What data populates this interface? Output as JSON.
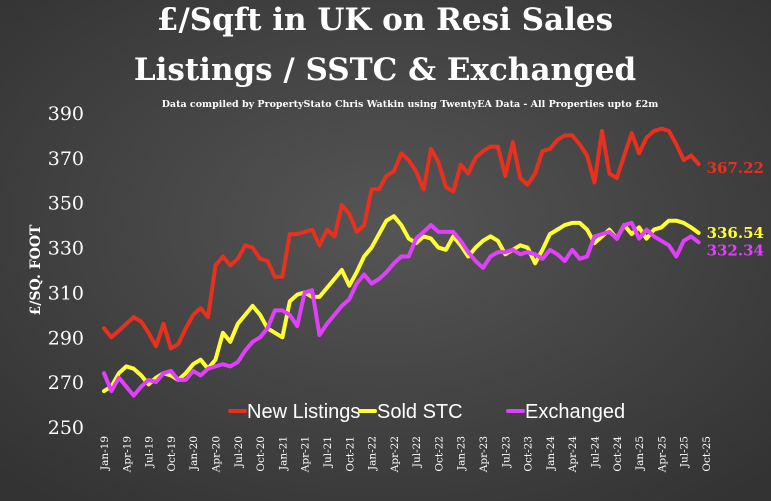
{
  "chart_data": {
    "type": "line",
    "title": [
      "£/Sqft in UK on Resi Sales",
      "Listings / SSTC & Exchanged"
    ],
    "subtitle": "Data compiled by PropertyStato Chris Watkin using TwentyEA Data - All Properties upto £2m",
    "y_label": "£/SQ. FOOT",
    "categories": [
      "Jan-19",
      null,
      null,
      "Apr-19",
      null,
      null,
      "Jul-19",
      null,
      null,
      "Oct-19",
      null,
      null,
      "Jan-20",
      null,
      null,
      "Apr-20",
      null,
      null,
      "Jul-20",
      null,
      null,
      "Oct-20",
      null,
      null,
      "Jan-21",
      null,
      null,
      "Apr-21",
      null,
      null,
      "Jul-21",
      null,
      null,
      "Oct-21",
      null,
      null,
      "Jan-22",
      null,
      null,
      "Apr-22",
      null,
      null,
      "Jul-22",
      null,
      null,
      "Oct-22",
      null,
      null,
      "Jan-23",
      null,
      null,
      "Apr-23",
      null,
      null,
      "Jul-23",
      null,
      null,
      "Oct-23",
      null,
      null,
      "Jan-24",
      null,
      null,
      "Apr-24",
      null,
      null,
      "Jul-24",
      null,
      null,
      "Oct-24",
      null,
      null,
      "Jan-25",
      null,
      null,
      "Apr-25",
      null,
      null,
      "Jul-25",
      null,
      null,
      "Oct-25"
    ],
    "series": [
      {
        "name": "New Listings",
        "color": "#e8301e",
        "values": [
          294,
          290,
          293,
          296,
          299,
          297,
          292,
          286,
          296,
          285,
          287,
          294,
          300,
          303,
          299,
          322,
          326,
          322,
          325,
          331,
          330,
          325,
          324,
          317,
          317,
          336,
          336,
          337,
          338,
          331,
          338,
          335,
          349,
          345,
          337,
          340,
          356,
          356,
          362,
          364,
          372,
          369,
          364,
          356,
          374,
          368,
          357,
          355,
          367,
          363,
          370,
          373,
          375,
          375,
          362,
          377,
          361,
          358,
          363,
          373,
          374,
          378,
          380,
          380,
          376,
          371,
          359,
          382,
          363,
          361,
          371,
          381,
          372,
          379,
          382,
          383,
          382,
          376,
          369,
          371,
          367.22,
          null
        ]
      },
      {
        "name": "Sold STC",
        "color": "#ffff33",
        "values": [
          266,
          268,
          274,
          277,
          276,
          273,
          269,
          272,
          274,
          273,
          271,
          274,
          278,
          280,
          276,
          280,
          292,
          288,
          296,
          300,
          304,
          300,
          294,
          292,
          290,
          306,
          309,
          310,
          308,
          308,
          312,
          316,
          320,
          313,
          319,
          326,
          330,
          336,
          342,
          344,
          340,
          334,
          332,
          335,
          334,
          330,
          329,
          335,
          331,
          326,
          330,
          333,
          335,
          333,
          327,
          329,
          331,
          330,
          323,
          329,
          336,
          338,
          340,
          341,
          341,
          338,
          332,
          335,
          338,
          334,
          340,
          336,
          339,
          334,
          338,
          339,
          342,
          342,
          341,
          339,
          336.54,
          null
        ]
      },
      {
        "name": "Exchanged",
        "color": "#e040fb",
        "values": [
          274,
          266,
          272,
          268,
          264,
          268,
          271,
          270,
          274,
          275,
          271,
          271,
          275,
          273,
          276,
          277,
          278,
          277,
          279,
          284,
          288,
          290,
          294,
          302,
          302,
          300,
          295,
          310,
          311,
          291,
          296,
          300,
          304,
          307,
          314,
          318,
          314,
          316,
          319,
          323,
          326,
          326,
          334,
          337,
          340,
          337,
          337,
          337,
          333,
          328,
          324,
          321,
          326,
          328,
          328,
          329,
          327,
          328,
          327,
          325,
          329,
          327,
          324,
          329,
          325,
          326,
          335,
          336,
          337,
          334,
          340,
          341,
          334,
          338,
          335,
          333,
          331,
          326,
          333,
          335,
          332.34,
          null
        ]
      }
    ],
    "ylim": [
      250,
      390
    ],
    "yticks": [
      250,
      270,
      290,
      310,
      330,
      350,
      370,
      390
    ],
    "grid": false,
    "legend": "bottom"
  }
}
